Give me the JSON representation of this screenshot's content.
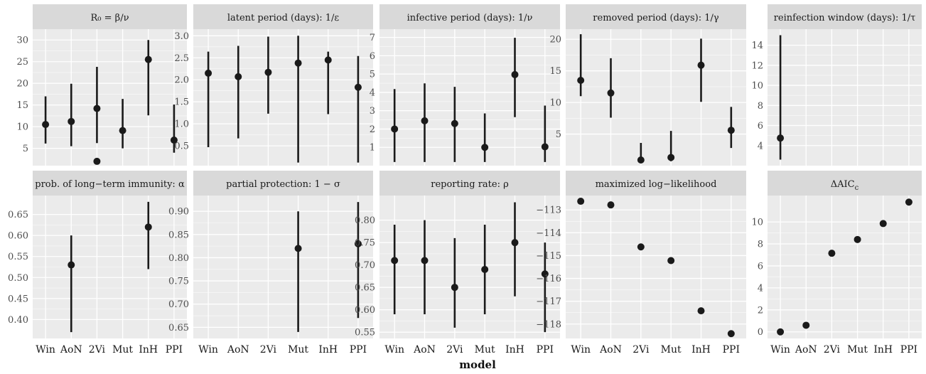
{
  "figure": {
    "x_axis_title": "model",
    "background": "#ffffff",
    "panel_color": "#ebebeb",
    "strip_color": "#d9d9d9",
    "grid_color": "#ffffff",
    "mark_color": "#1a1a1a"
  },
  "chart_data": [
    {
      "type": "scatter",
      "title": "R₀ = β/ν",
      "categories": [
        "Win",
        "AoN",
        "2Vi",
        "Mut",
        "InH",
        "PPI"
      ],
      "ylim": [
        1.0,
        32.5
      ],
      "yticks": [
        5,
        10,
        15,
        20,
        25,
        30
      ],
      "ytick_labels": [
        "5",
        "10",
        "15",
        "20",
        "25",
        "30"
      ],
      "series": [
        {
          "values": [
            10.5,
            11.2,
            14.2,
            9.1,
            25.5,
            6.9
          ],
          "lower": [
            6.1,
            5.5,
            6.2,
            5.0,
            12.6,
            4.0
          ],
          "upper": [
            17.0,
            19.9,
            23.8,
            16.4,
            30.0,
            15.1
          ]
        },
        {
          "values": [
            null,
            null,
            2.0,
            null,
            null,
            null
          ],
          "lower": [
            null,
            null,
            null,
            null,
            null,
            null
          ],
          "upper": [
            null,
            null,
            null,
            null,
            null,
            null
          ]
        }
      ]
    },
    {
      "type": "scatter",
      "title": "latent period (days):  1/ε",
      "categories": [
        "Win",
        "AoN",
        "2Vi",
        "Mut",
        "InH",
        "PPI"
      ],
      "ylim": [
        0.05,
        3.15
      ],
      "yticks": [
        0.5,
        1.0,
        1.5,
        2.0,
        2.5,
        3.0
      ],
      "ytick_labels": [
        "0.5",
        "1.0",
        "1.5",
        "2.0",
        "2.5",
        "3.0"
      ],
      "series": [
        {
          "values": [
            2.15,
            2.07,
            2.17,
            2.38,
            2.45,
            1.83
          ],
          "lower": [
            0.47,
            0.67,
            1.23,
            0.12,
            1.22,
            0.12
          ],
          "upper": [
            2.64,
            2.77,
            2.98,
            3.0,
            2.64,
            2.54
          ]
        }
      ]
    },
    {
      "type": "scatter",
      "title": "infective period (days): 1/ν",
      "categories": [
        "Win",
        "AoN",
        "2Vi",
        "Mut",
        "InH",
        "PPI"
      ],
      "ylim": [
        0.0,
        7.45
      ],
      "yticks": [
        1,
        2,
        3,
        4,
        5,
        6,
        7
      ],
      "ytick_labels": [
        "1",
        "2",
        "3",
        "4",
        "5",
        "6",
        "7"
      ],
      "series": [
        {
          "values": [
            2.0,
            2.45,
            2.3,
            1.0,
            4.97,
            1.03
          ],
          "lower": [
            0.2,
            0.2,
            0.2,
            0.2,
            2.65,
            0.2
          ],
          "upper": [
            4.18,
            4.49,
            4.3,
            2.85,
            6.98,
            3.28
          ]
        }
      ]
    },
    {
      "type": "scatter",
      "title": "removed period (days): 1/γ",
      "categories": [
        "Win",
        "AoN",
        "2Vi",
        "Mut",
        "InH",
        "PPI"
      ],
      "ylim": [
        0.0,
        21.6
      ],
      "yticks": [
        5,
        10,
        15,
        20
      ],
      "ytick_labels": [
        "5",
        "10",
        "15",
        "20"
      ],
      "series": [
        {
          "values": [
            13.5,
            11.5,
            0.9,
            1.3,
            15.9,
            5.6
          ],
          "lower": [
            11.0,
            7.6,
            0.8,
            0.7,
            10.1,
            2.8
          ],
          "upper": [
            20.8,
            17.0,
            3.6,
            5.5,
            20.1,
            9.3
          ]
        }
      ]
    },
    {
      "type": "scatter",
      "title": "reinfection window (days): 1/τ",
      "categories": [
        "Win",
        "AoN",
        "2Vi",
        "Mut",
        "InH",
        "PPI"
      ],
      "ylim": [
        2.0,
        15.6
      ],
      "yticks": [
        4,
        6,
        8,
        10,
        12,
        14
      ],
      "ytick_labels": [
        "4",
        "6",
        "8",
        "10",
        "12",
        "14"
      ],
      "series": [
        {
          "values": [
            4.75,
            null,
            null,
            null,
            null,
            null
          ],
          "lower": [
            2.6,
            null,
            null,
            null,
            null,
            null
          ],
          "upper": [
            15.0,
            null,
            null,
            null,
            null,
            null
          ]
        }
      ]
    },
    {
      "type": "scatter",
      "title": "prob. of long−term immunity: α",
      "categories": [
        "Win",
        "AoN",
        "2Vi",
        "Mut",
        "InH",
        "PPI"
      ],
      "ylim": [
        0.355,
        0.695
      ],
      "yticks": [
        0.4,
        0.45,
        0.5,
        0.55,
        0.6,
        0.65
      ],
      "ytick_labels": [
        "0.40",
        "0.45",
        "0.50",
        "0.55",
        "0.60",
        "0.65"
      ],
      "series": [
        {
          "values": [
            null,
            0.53,
            null,
            null,
            0.62,
            null
          ],
          "lower": [
            null,
            0.37,
            null,
            null,
            0.52,
            null
          ],
          "upper": [
            null,
            0.6,
            null,
            null,
            0.68,
            null
          ]
        }
      ]
    },
    {
      "type": "scatter",
      "title": "partial protection: 1 − σ",
      "categories": [
        "Win",
        "AoN",
        "2Vi",
        "Mut",
        "InH",
        "PPI"
      ],
      "ylim": [
        0.626,
        0.934
      ],
      "yticks": [
        0.65,
        0.7,
        0.75,
        0.8,
        0.85,
        0.9
      ],
      "ytick_labels": [
        "0.65",
        "0.70",
        "0.75",
        "0.80",
        "0.85",
        "0.90"
      ],
      "series": [
        {
          "values": [
            null,
            null,
            null,
            0.82,
            null,
            0.83
          ],
          "lower": [
            null,
            null,
            null,
            0.64,
            null,
            0.67
          ],
          "upper": [
            null,
            null,
            null,
            0.9,
            null,
            0.92
          ]
        }
      ]
    },
    {
      "type": "scatter",
      "title": "reporting rate: ρ",
      "categories": [
        "Win",
        "AoN",
        "2Vi",
        "Mut",
        "InH",
        "PPI"
      ],
      "ylim": [
        0.536,
        0.855
      ],
      "yticks": [
        0.55,
        0.6,
        0.65,
        0.7,
        0.75,
        0.8
      ],
      "ytick_labels": [
        "0.55",
        "0.60",
        "0.65",
        "0.70",
        "0.75",
        "0.80"
      ],
      "series": [
        {
          "values": [
            0.71,
            0.71,
            0.65,
            0.69,
            0.75,
            0.68
          ],
          "lower": [
            0.59,
            0.59,
            0.56,
            0.59,
            0.63,
            0.55
          ],
          "upper": [
            0.79,
            0.8,
            0.76,
            0.79,
            0.84,
            0.75
          ]
        }
      ]
    },
    {
      "type": "scatter",
      "title": "maximized log−likelihood",
      "categories": [
        "Win",
        "AoN",
        "2Vi",
        "Mut",
        "InH",
        "PPI"
      ],
      "ylim": [
        -118.63,
        -112.37
      ],
      "yticks": [
        -113,
        -114,
        -115,
        -116,
        -117,
        -118
      ],
      "ytick_labels": [
        "−113",
        "−114",
        "−115",
        "−116",
        "−117",
        "−118"
      ],
      "series": [
        {
          "values": [
            -112.62,
            -112.78,
            -114.62,
            -115.22,
            -117.42,
            -118.42
          ],
          "lower": [
            null,
            null,
            null,
            null,
            null,
            null
          ],
          "upper": [
            null,
            null,
            null,
            null,
            null,
            null
          ]
        }
      ]
    },
    {
      "type": "scatter",
      "title": "ΔAIC",
      "title_subscript": "c",
      "categories": [
        "Win",
        "AoN",
        "2Vi",
        "Mut",
        "InH",
        "PPI"
      ],
      "ylim": [
        -0.6,
        12.4
      ],
      "yticks": [
        0,
        2,
        4,
        6,
        8,
        10
      ],
      "ytick_labels": [
        "0",
        "2",
        "4",
        "6",
        "8",
        "10"
      ],
      "series": [
        {
          "values": [
            0.0,
            0.6,
            7.15,
            8.4,
            9.85,
            11.8
          ],
          "lower": [
            null,
            null,
            null,
            null,
            null,
            null
          ],
          "upper": [
            null,
            null,
            null,
            null,
            null,
            null
          ]
        }
      ]
    }
  ]
}
